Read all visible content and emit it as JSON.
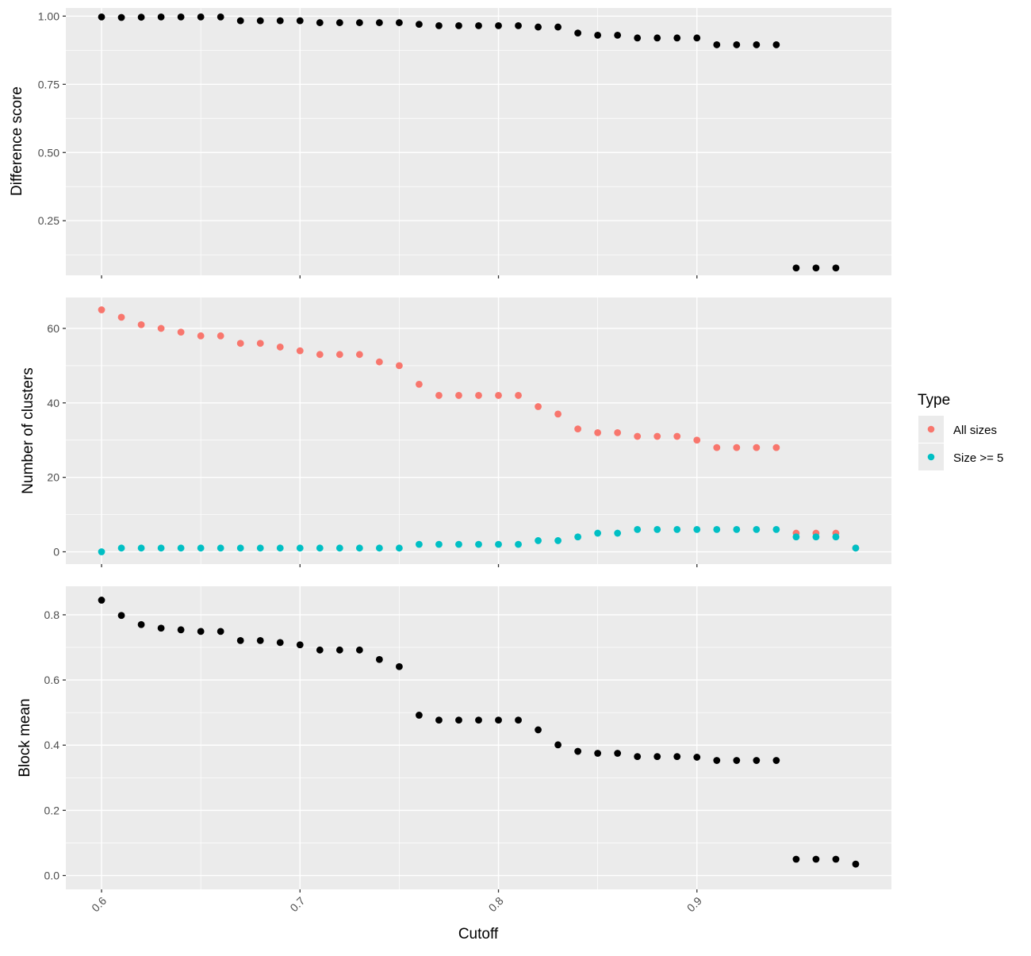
{
  "chart_data": [
    {
      "type": "scatter",
      "title": "",
      "ylabel": "Difference score",
      "xlim": [
        0.582,
        0.998
      ],
      "ylim": [
        0.05,
        1.03
      ],
      "y_ticks": [
        0.25,
        0.5,
        0.75,
        1.0
      ],
      "y_tick_labels": [
        "0.25",
        "0.50",
        "0.75",
        "1.00"
      ],
      "x_ticks": [
        0.6,
        0.7,
        0.8,
        0.9
      ],
      "grid": true,
      "color": "#000000",
      "x": [
        0.6,
        0.61,
        0.62,
        0.63,
        0.64,
        0.65,
        0.66,
        0.67,
        0.68,
        0.69,
        0.7,
        0.71,
        0.72,
        0.73,
        0.74,
        0.75,
        0.76,
        0.77,
        0.78,
        0.79,
        0.8,
        0.81,
        0.82,
        0.83,
        0.84,
        0.85,
        0.86,
        0.87,
        0.88,
        0.89,
        0.9,
        0.91,
        0.92,
        0.93,
        0.94,
        0.95,
        0.96,
        0.97
      ],
      "y": [
        0.997,
        0.995,
        0.996,
        0.997,
        0.997,
        0.997,
        0.997,
        0.983,
        0.983,
        0.983,
        0.983,
        0.976,
        0.976,
        0.976,
        0.976,
        0.976,
        0.97,
        0.965,
        0.965,
        0.965,
        0.965,
        0.965,
        0.96,
        0.96,
        0.938,
        0.93,
        0.93,
        0.92,
        0.92,
        0.92,
        0.92,
        0.895,
        0.895,
        0.895,
        0.895,
        0.077,
        0.077,
        0.077
      ]
    },
    {
      "type": "scatter",
      "title": "",
      "ylabel": "Number of clusters",
      "xlim": [
        0.582,
        0.998
      ],
      "ylim": [
        -3.3,
        68.3
      ],
      "y_ticks": [
        0,
        20,
        40,
        60
      ],
      "y_tick_labels": [
        "0",
        "20",
        "40",
        "60"
      ],
      "x_ticks": [
        0.6,
        0.7,
        0.8,
        0.9
      ],
      "grid": true,
      "x": [
        0.6,
        0.61,
        0.62,
        0.63,
        0.64,
        0.65,
        0.66,
        0.67,
        0.68,
        0.69,
        0.7,
        0.71,
        0.72,
        0.73,
        0.74,
        0.75,
        0.76,
        0.77,
        0.78,
        0.79,
        0.8,
        0.81,
        0.82,
        0.83,
        0.84,
        0.85,
        0.86,
        0.87,
        0.88,
        0.89,
        0.9,
        0.91,
        0.92,
        0.93,
        0.94,
        0.95,
        0.96,
        0.97,
        0.98
      ],
      "series": [
        {
          "name": "All sizes",
          "color": "#F8766D",
          "values": [
            65,
            63,
            61,
            60,
            59,
            58,
            58,
            56,
            56,
            55,
            54,
            53,
            53,
            53,
            51,
            50,
            45,
            42,
            42,
            42,
            42,
            42,
            39,
            37,
            33,
            32,
            32,
            31,
            31,
            31,
            30,
            28,
            28,
            28,
            28,
            5,
            5,
            5,
            1
          ]
        },
        {
          "name": "Size >= 5",
          "color": "#00BFC4",
          "values": [
            0,
            1,
            1,
            1,
            1,
            1,
            1,
            1,
            1,
            1,
            1,
            1,
            1,
            1,
            1,
            1,
            2,
            2,
            2,
            2,
            2,
            2,
            3,
            3,
            4,
            5,
            5,
            6,
            6,
            6,
            6,
            6,
            6,
            6,
            6,
            4,
            4,
            4,
            1
          ]
        }
      ]
    },
    {
      "type": "scatter",
      "title": "",
      "ylabel": "Block mean",
      "xlabel": "Cutoff",
      "xlim": [
        0.582,
        0.998
      ],
      "ylim": [
        -0.0425,
        0.8875
      ],
      "y_ticks": [
        0.0,
        0.2,
        0.4,
        0.6,
        0.8
      ],
      "y_tick_labels": [
        "0.0",
        "0.2",
        "0.4",
        "0.6",
        "0.8"
      ],
      "x_ticks": [
        0.6,
        0.7,
        0.8,
        0.9
      ],
      "x_tick_labels": [
        "0.6",
        "0.7",
        "0.8",
        "0.9"
      ],
      "grid": true,
      "color": "#000000",
      "x": [
        0.6,
        0.61,
        0.62,
        0.63,
        0.64,
        0.65,
        0.66,
        0.67,
        0.68,
        0.69,
        0.7,
        0.71,
        0.72,
        0.73,
        0.74,
        0.75,
        0.76,
        0.77,
        0.78,
        0.79,
        0.8,
        0.81,
        0.82,
        0.83,
        0.84,
        0.85,
        0.86,
        0.87,
        0.88,
        0.89,
        0.9,
        0.91,
        0.92,
        0.93,
        0.94,
        0.95,
        0.96,
        0.97,
        0.98
      ],
      "y": [
        0.845,
        0.798,
        0.77,
        0.759,
        0.754,
        0.749,
        0.749,
        0.721,
        0.721,
        0.715,
        0.708,
        0.692,
        0.692,
        0.692,
        0.663,
        0.641,
        0.492,
        0.477,
        0.477,
        0.477,
        0.477,
        0.477,
        0.447,
        0.401,
        0.381,
        0.375,
        0.375,
        0.365,
        0.365,
        0.365,
        0.363,
        0.353,
        0.353,
        0.353,
        0.353,
        0.05,
        0.05,
        0.05,
        0.035
      ]
    }
  ],
  "legend": {
    "title": "Type",
    "placement": "right",
    "items": [
      {
        "label": "All sizes",
        "color": "#F8766D"
      },
      {
        "label": "Size >= 5",
        "color": "#00BFC4"
      }
    ]
  }
}
